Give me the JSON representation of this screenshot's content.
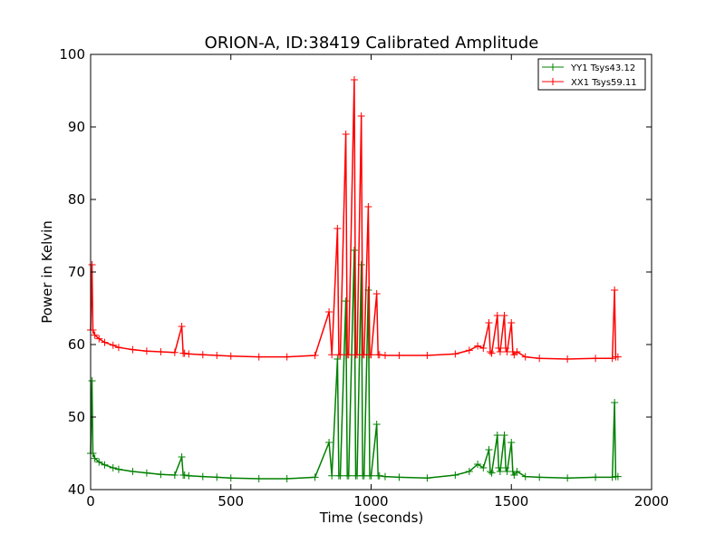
{
  "chart_data": {
    "type": "line",
    "title": "ORION-A, ID:38419 Calibrated Amplitude",
    "xlabel": "Time (seconds)",
    "ylabel": "Power in Kelvin",
    "xlim": [
      0,
      2000
    ],
    "ylim": [
      40,
      100
    ],
    "xticks": [
      "0",
      "500",
      "1000",
      "1500",
      "2000"
    ],
    "yticks": [
      "40",
      "50",
      "60",
      "70",
      "80",
      "90",
      "100"
    ],
    "grid": false,
    "legend_position": "top-right",
    "marker": "+",
    "series": [
      {
        "name": "YY1 Tsys43.12",
        "color": "#008000",
        "x": [
          0,
          5,
          8,
          15,
          30,
          50,
          80,
          100,
          150,
          200,
          250,
          300,
          325,
          330,
          335,
          350,
          400,
          450,
          500,
          600,
          700,
          800,
          850,
          860,
          880,
          885,
          890,
          910,
          915,
          920,
          940,
          945,
          950,
          965,
          970,
          975,
          990,
          995,
          1000,
          1020,
          1025,
          1030,
          1050,
          1100,
          1200,
          1300,
          1350,
          1380,
          1400,
          1420,
          1425,
          1430,
          1450,
          1455,
          1460,
          1475,
          1480,
          1485,
          1500,
          1505,
          1510,
          1520,
          1550,
          1600,
          1700,
          1800,
          1860,
          1868,
          1872,
          1880
        ],
        "y": [
          45,
          55,
          45,
          44.3,
          43.8,
          43.4,
          43,
          42.8,
          42.5,
          42.3,
          42.1,
          42,
          44.5,
          42,
          42,
          41.9,
          41.8,
          41.7,
          41.6,
          41.5,
          41.5,
          41.7,
          46.5,
          41.9,
          58,
          41.9,
          41.9,
          66,
          41.9,
          41.9,
          73,
          41.9,
          41.9,
          71,
          41.9,
          41.9,
          67.5,
          41.9,
          41.9,
          49,
          41.9,
          41.9,
          41.8,
          41.7,
          41.6,
          42,
          42.5,
          43.5,
          43,
          45.5,
          42.5,
          42.3,
          47.5,
          43,
          42.5,
          47.5,
          43,
          42.5,
          46.5,
          42.5,
          42,
          42.5,
          41.8,
          41.7,
          41.6,
          41.7,
          41.7,
          52,
          41.8,
          41.8
        ]
      },
      {
        "name": "XX1 Tsys59.11",
        "color": "#ff0000",
        "x": [
          0,
          5,
          8,
          15,
          30,
          50,
          80,
          100,
          150,
          200,
          250,
          300,
          325,
          330,
          335,
          350,
          400,
          450,
          500,
          600,
          700,
          800,
          850,
          860,
          880,
          885,
          890,
          910,
          915,
          920,
          940,
          945,
          950,
          965,
          970,
          975,
          990,
          995,
          1000,
          1020,
          1025,
          1030,
          1050,
          1100,
          1200,
          1300,
          1350,
          1380,
          1400,
          1420,
          1425,
          1430,
          1450,
          1455,
          1460,
          1475,
          1480,
          1485,
          1500,
          1505,
          1510,
          1520,
          1550,
          1600,
          1700,
          1800,
          1860,
          1868,
          1872,
          1880
        ],
        "y": [
          62,
          71,
          62,
          61.3,
          60.8,
          60.3,
          59.9,
          59.6,
          59.3,
          59.1,
          59,
          58.9,
          62.5,
          58.8,
          58.8,
          58.7,
          58.6,
          58.5,
          58.4,
          58.3,
          58.3,
          58.5,
          64.5,
          58.6,
          76,
          58.6,
          58.6,
          89,
          58.6,
          58.6,
          96.5,
          58.6,
          58.6,
          91.5,
          58.6,
          58.6,
          79,
          58.6,
          58.6,
          67,
          58.6,
          58.6,
          58.5,
          58.5,
          58.5,
          58.7,
          59.2,
          59.8,
          59.5,
          63,
          59,
          58.8,
          64,
          59.5,
          59,
          64,
          59.5,
          59,
          63,
          59,
          58.6,
          59,
          58.3,
          58.1,
          58,
          58.1,
          58.1,
          67.5,
          58.3,
          58.3
        ]
      }
    ]
  }
}
